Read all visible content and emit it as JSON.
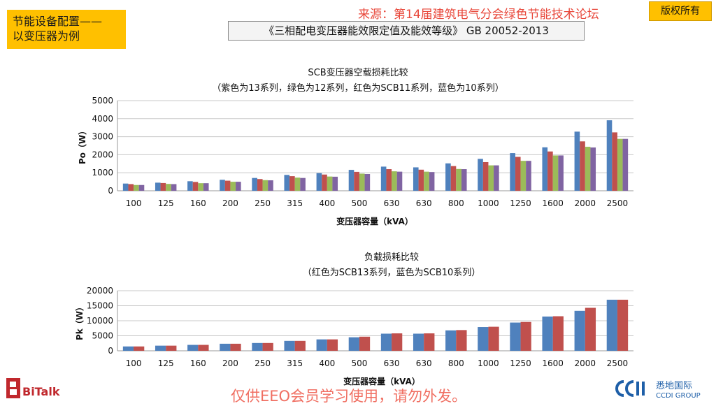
{
  "header": {
    "title_line1": "节能设备配置——",
    "title_line2": "以变压器为例",
    "standard": "《三相配电变压器能效限定值及能效等级》 GB 20052-2013",
    "source": "来源：第14届建筑电气分会绿色节能技术论坛",
    "copyright": "版权所有"
  },
  "footer": {
    "watermark": "仅供EEO会员学习使用，请勿外发。",
    "brand_left": "BiTalk",
    "brand_right_cn": "悉地国际",
    "brand_right_en": "CCDI GROUP"
  },
  "chart_data": [
    {
      "type": "bar",
      "title": "SCB变压器空载损耗比较",
      "subtitle": "（紫色为13系列，绿色为12系列，红色为SCB11系列，蓝色为10系列）",
      "xlabel": "变压器容量（kVA）",
      "ylabel": "Po（W）",
      "ylim": [
        0,
        5000
      ],
      "yticks": [
        0,
        1000,
        2000,
        3000,
        4000,
        5000
      ],
      "grid": true,
      "categories": [
        "100",
        "125",
        "160",
        "200",
        "250",
        "315",
        "400",
        "500",
        "630",
        "630",
        "800",
        "1000",
        "1250",
        "1600",
        "2000",
        "2500"
      ],
      "series": [
        {
          "color": "#4f81bd",
          "values": [
            400,
            450,
            530,
            610,
            710,
            880,
            980,
            1160,
            1340,
            1300,
            1520,
            1770,
            2090,
            2410,
            3280,
            3910
          ]
        },
        {
          "color": "#c0504d",
          "values": [
            370,
            430,
            490,
            560,
            650,
            810,
            900,
            1050,
            1200,
            1170,
            1370,
            1590,
            1880,
            2180,
            2740,
            3240
          ]
        },
        {
          "color": "#9bbb59",
          "values": [
            320,
            380,
            420,
            500,
            590,
            730,
            790,
            950,
            1080,
            1060,
            1210,
            1410,
            1660,
            1960,
            2440,
            2880
          ]
        },
        {
          "color": "#8064a2",
          "values": [
            320,
            370,
            420,
            500,
            580,
            710,
            780,
            930,
            1060,
            1040,
            1200,
            1410,
            1660,
            1960,
            2400,
            2880
          ]
        }
      ]
    },
    {
      "type": "bar",
      "title": "负载损耗比较",
      "subtitle": "（红色为SCB13系列，蓝色为SCB10系列）",
      "xlabel": "变压器容量（kVA）",
      "ylabel": "Pk（W）",
      "ylim": [
        0,
        20000
      ],
      "yticks": [
        0,
        5000,
        10000,
        15000,
        20000
      ],
      "grid": true,
      "categories": [
        "100",
        "125",
        "160",
        "200",
        "250",
        "315",
        "400",
        "500",
        "630",
        "630",
        "800",
        "1000",
        "1250",
        "1600",
        "2000",
        "2500"
      ],
      "series": [
        {
          "color": "#4f81bd",
          "values": [
            1450,
            1710,
            1970,
            2350,
            2600,
            3300,
            3800,
            4500,
            5700,
            5700,
            6800,
            7900,
            9400,
            11400,
            13300,
            17000
          ]
        },
        {
          "color": "#c0504d",
          "values": [
            1450,
            1710,
            1970,
            2350,
            2600,
            3300,
            3800,
            4700,
            5800,
            5800,
            6900,
            8000,
            9600,
            11500,
            14300,
            17000
          ]
        }
      ]
    }
  ]
}
